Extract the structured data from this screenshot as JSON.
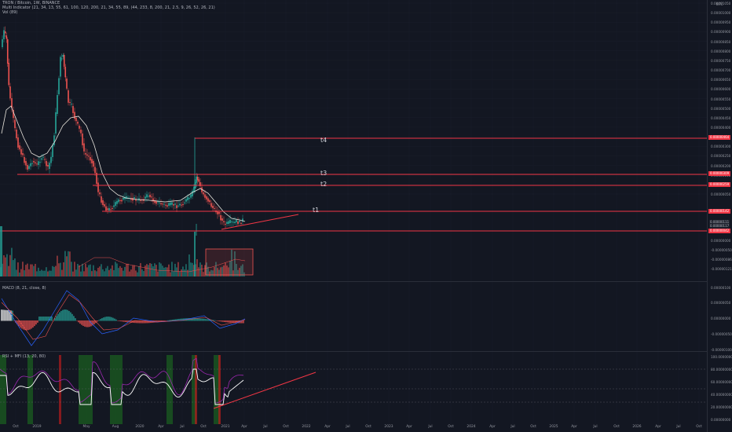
{
  "header": {
    "symbol_line": "TRON / Bitcoin, 1W, BINANCE",
    "multi_indicator": "Multi Indicator (21, 34, 13, 55, 61, 100, 120, 200, 21, 34, 55, 89, (44, 233, 8, 200, 21, 2.5, 9, 26, 52, 26, 21)",
    "vol": "Vol (89)"
  },
  "price_axis": {
    "unit": "BTC",
    "labels": [
      "0.00001050",
      "0.00001000",
      "0.00000950",
      "0.00000900",
      "0.00000850",
      "0.00000800",
      "0.00000750",
      "0.00000700",
      "0.00000650",
      "0.00000600",
      "0.00000550",
      "0.00000500",
      "0.00000450",
      "0.00000400",
      "0.00000350",
      "0.00000300",
      "0.00000250",
      "0.00000200",
      "0.00000150",
      "0.00000100",
      "0.00000050",
      "0.00000000",
      "-0.00000050",
      "-0.00000086",
      "-0.00000121"
    ]
  },
  "price_tags": {
    "t4": "0.00000464",
    "t3": "0.00000309",
    "t2": "0.00000259",
    "t1": "0.00000142",
    "support": "0.00000042"
  },
  "target_labels": {
    "t4": "t4",
    "t3": "t3",
    "t2": "t2",
    "t1": "t1"
  },
  "change_box": [
    "0.00000111",
    "0.00000117"
  ],
  "macd": {
    "title": "MACD (8, 21, close, 8)",
    "axis": [
      "0.00000100",
      "0.00000050",
      "0.00000000",
      "-0.00000050",
      "-0.00000100"
    ]
  },
  "rsi": {
    "title": "RSI + MFI (13, 20, 80)",
    "axis": [
      "100.00000000",
      "80.00000000",
      "60.00000000",
      "40.00000000",
      "20.00000000",
      "0.00000000"
    ]
  },
  "time_axis": [
    "Oct",
    "2019",
    "May",
    "Aug",
    "2020",
    "Apr",
    "Jul",
    "Oct",
    "2021",
    "Apr",
    "Jul",
    "Oct",
    "2022",
    "Apr",
    "Jul",
    "Oct",
    "2023",
    "Apr",
    "Jul",
    "Oct",
    "2024",
    "Apr",
    "Jul",
    "Oct",
    "2025",
    "Apr",
    "Jul",
    "Oct",
    "2026",
    "Apr",
    "Jul",
    "Oct"
  ],
  "colors": {
    "bg": "#131722",
    "up": "#26a69a",
    "down": "#ef5350",
    "line": "#f23645",
    "ma": "#e8e4dc",
    "rsi": "#ffffff",
    "mfi": "#9c27b0",
    "green_zone": "#1b5e20"
  }
}
